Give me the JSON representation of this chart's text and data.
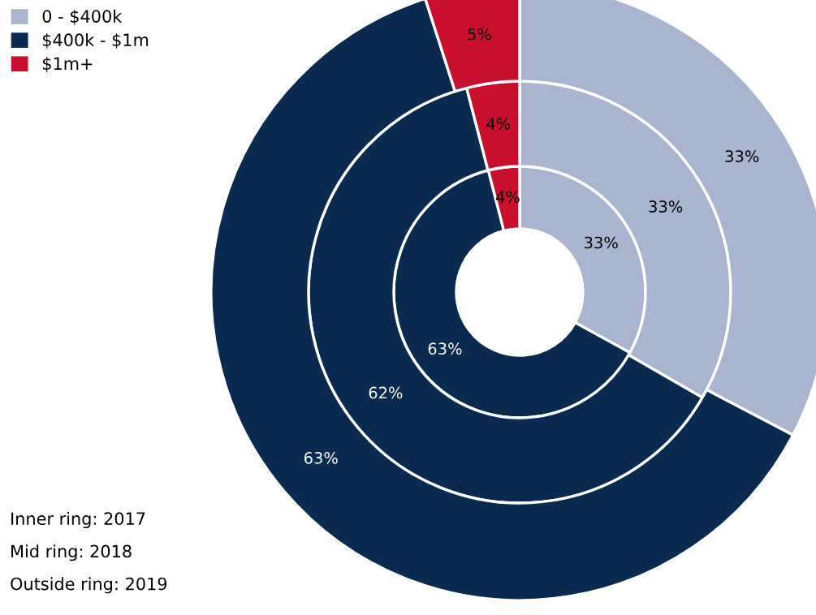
{
  "chart_data": {
    "type": "donut",
    "categories": [
      "0 - $400k",
      "$400k - $1m",
      "$1m+"
    ],
    "colors": [
      "#a9b4cf",
      "#0b2a4f",
      "#c8102e"
    ],
    "series": [
      {
        "values": [
          33,
          63,
          4
        ],
        "value_labels": [
          "33%",
          "63%",
          "4%"
        ]
      },
      {
        "values": [
          33,
          62,
          4
        ],
        "value_labels": [
          "33%",
          "62%",
          "4%"
        ]
      },
      {
        "values": [
          33,
          63,
          5
        ],
        "value_labels": [
          "33%",
          "63%",
          "5%"
        ]
      }
    ],
    "legend": "top left",
    "annotations": [
      "Inner ring: 2017",
      "Mid ring: 2018",
      "Outside ring: 2019"
    ]
  }
}
